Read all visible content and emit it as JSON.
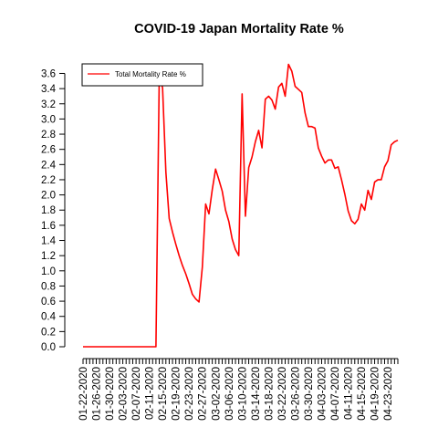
{
  "chart_data": {
    "type": "line",
    "title": "COVID-19 Japan Mortality Rate %",
    "xlabel": "",
    "ylabel": "",
    "ylim": [
      0,
      3.7
    ],
    "grid": false,
    "legend_position": "top-left",
    "y_ticks": [
      "0.0",
      "0.2",
      "0.4",
      "0.6",
      "0.8",
      "1.0",
      "1.2",
      "1.4",
      "1.6",
      "1.8",
      "2.0",
      "2.2",
      "2.4",
      "2.6",
      "2.8",
      "3.0",
      "3.2",
      "3.4",
      "3.6"
    ],
    "x_tick_labels": [
      "01-22-2020",
      "01-26-2020",
      "01-30-2020",
      "02-03-2020",
      "02-07-2020",
      "02-11-2020",
      "02-15-2020",
      "02-19-2020",
      "02-23-2020",
      "02-27-2020",
      "03-02-2020",
      "03-06-2020",
      "03-10-2020",
      "03-14-2020",
      "03-18-2020",
      "03-22-2020",
      "03-26-2020",
      "03-30-2020",
      "04-03-2020",
      "04-07-2020",
      "04-11-2020",
      "04-15-2020",
      "04-19-2020",
      "04-23-2020"
    ],
    "series": [
      {
        "name": "Total Mortality Rate %",
        "color": "#ff0000",
        "x_start": "01-22-2020",
        "x_end": "04-25-2020",
        "values": [
          0,
          0,
          0,
          0,
          0,
          0,
          0,
          0,
          0,
          0,
          0,
          0,
          0,
          0,
          0,
          0,
          0,
          0,
          0,
          0,
          0,
          0,
          0,
          3.57,
          3.41,
          2.3,
          1.69,
          1.51,
          1.35,
          1.2,
          1.07,
          0.96,
          0.83,
          0.69,
          0.63,
          0.59,
          1.05,
          1.88,
          1.75,
          2.07,
          2.34,
          2.2,
          2.05,
          1.8,
          1.65,
          1.42,
          1.28,
          1.2,
          3.33,
          1.72,
          2.36,
          2.5,
          2.7,
          2.85,
          2.62,
          3.26,
          3.3,
          3.25,
          3.13,
          3.42,
          3.47,
          3.3,
          3.72,
          3.63,
          3.43,
          3.39,
          3.35,
          3.08,
          2.9,
          2.9,
          2.88,
          2.62,
          2.51,
          2.42,
          2.46,
          2.46,
          2.35,
          2.37,
          2.2,
          2.01,
          1.79,
          1.66,
          1.62,
          1.68,
          1.88,
          1.8,
          2.06,
          1.94,
          2.17,
          2.2,
          2.2,
          2.37,
          2.45,
          2.66,
          2.7,
          2.72
        ]
      }
    ]
  }
}
